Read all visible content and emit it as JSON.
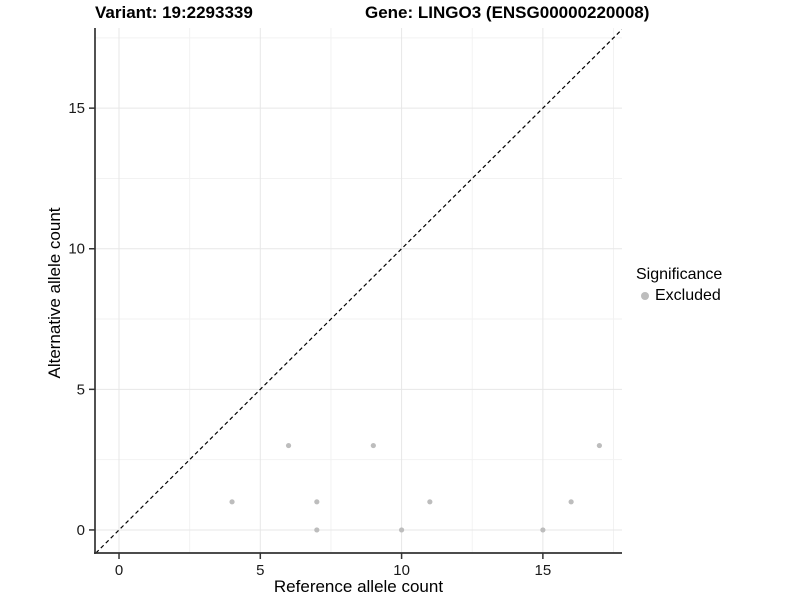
{
  "titles": {
    "variant": "Variant: 19:2293339",
    "gene": "Gene: LINGO3 (ENSG00000220008)"
  },
  "legend": {
    "title": "Significance",
    "items": [
      {
        "label": "Excluded",
        "color": "#bdbdbd"
      }
    ]
  },
  "chart_data": {
    "type": "scatter",
    "title": "Variant: 19:2293339 / Gene: LINGO3 (ENSG00000220008)",
    "xlabel": "Reference allele count",
    "ylabel": "Alternative allele count",
    "xlim": [
      -0.85,
      17.8
    ],
    "ylim": [
      -0.82,
      17.85
    ],
    "x_ticks": [
      0,
      5,
      10,
      15
    ],
    "y_ticks": [
      0,
      5,
      10,
      15
    ],
    "x_minor_gridlines": [
      2.5,
      7.5,
      12.5,
      17.5
    ],
    "y_minor_gridlines": [
      2.5,
      7.5,
      12.5,
      17.5
    ],
    "grid": true,
    "legend_position": "right",
    "series": [
      {
        "name": "Excluded",
        "color": "#bdbdbd",
        "points": [
          [
            4,
            1
          ],
          [
            6,
            3
          ],
          [
            7,
            0
          ],
          [
            7,
            1
          ],
          [
            9,
            3
          ],
          [
            10,
            0
          ],
          [
            11,
            1
          ],
          [
            15,
            0
          ],
          [
            16,
            1
          ],
          [
            17,
            3
          ]
        ]
      }
    ],
    "reference_line": {
      "kind": "identity y=x",
      "style": "dashed",
      "color": "#000000"
    },
    "colors": {
      "grid_major": "#e7e7e7",
      "grid_minor": "#f2f2f2",
      "axis": "#333333",
      "tick_label": "#1a1a1a",
      "background": "#ffffff"
    }
  }
}
